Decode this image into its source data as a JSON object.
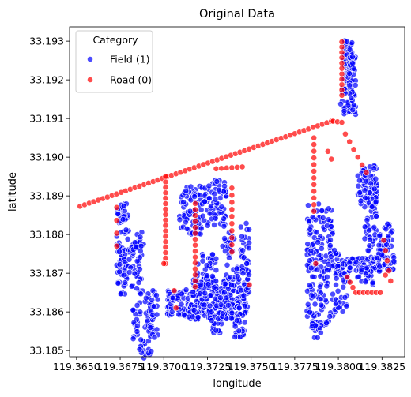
{
  "chart_data": {
    "type": "scatter",
    "title": "Original Data",
    "xlabel": "longitude",
    "ylabel": "latitude",
    "xlim": [
      119.3646,
      119.3838
    ],
    "ylim": [
      33.18484,
      33.19337
    ],
    "xticks": [
      {
        "value": 119.365,
        "label": "119.3650"
      },
      {
        "value": 119.3675,
        "label": "119.3675"
      },
      {
        "value": 119.37,
        "label": "119.3700"
      },
      {
        "value": 119.3725,
        "label": "119.3725"
      },
      {
        "value": 119.375,
        "label": "119.3750"
      },
      {
        "value": 119.3775,
        "label": "119.3775"
      },
      {
        "value": 119.38,
        "label": "119.3800"
      },
      {
        "value": 119.3825,
        "label": "119.3825"
      }
    ],
    "yticks": [
      {
        "value": 33.185,
        "label": "33.185"
      },
      {
        "value": 33.186,
        "label": "33.186"
      },
      {
        "value": 33.187,
        "label": "33.187"
      },
      {
        "value": 33.188,
        "label": "33.188"
      },
      {
        "value": 33.189,
        "label": "33.189"
      },
      {
        "value": 33.19,
        "label": "33.190"
      },
      {
        "value": 33.191,
        "label": "33.191"
      },
      {
        "value": 33.192,
        "label": "33.192"
      },
      {
        "value": 33.193,
        "label": "33.193"
      }
    ],
    "grid": false,
    "legend": {
      "title": "Category",
      "placement": "top-left",
      "entries": [
        {
          "label": "Field (1)",
          "color": "#0000ff"
        },
        {
          "label": "Road (0)",
          "color": "#ff0000"
        }
      ]
    },
    "series": [
      {
        "name": "Road (0)",
        "color": "#ff0000",
        "marker": "circle",
        "lines": [
          {
            "from": [
              119.3652,
              33.18873
            ],
            "to": [
              119.3796,
              33.19093
            ],
            "n": 56
          },
          {
            "from": [
              119.3797,
              33.19093
            ],
            "to": [
              119.3802,
              33.1909
            ],
            "n": 3
          },
          {
            "from": [
              119.3802,
              33.1916
            ],
            "to": [
              119.3802,
              33.19285
            ],
            "n": 10
          },
          {
            "from": [
              119.3701,
              33.1895
            ],
            "to": [
              119.3701,
              33.18725
            ],
            "n": 17
          },
          {
            "from": [
              119.3718,
              33.1888
            ],
            "to": [
              119.3718,
              33.18665
            ],
            "n": 15
          },
          {
            "from": [
              119.3739,
              33.1892
            ],
            "to": [
              119.3739,
              33.18755
            ],
            "n": 10
          },
          {
            "from": [
              119.373,
              33.1897
            ],
            "to": [
              119.3745,
              33.18975
            ],
            "n": 6
          },
          {
            "from": [
              119.3786,
              33.1905
            ],
            "to": [
              119.3786,
              33.1886
            ],
            "n": 12
          },
          {
            "from": [
              119.3804,
              33.1906
            ],
            "to": [
              119.3816,
              33.1896
            ],
            "n": 6
          },
          {
            "from": [
              119.3805,
              33.1869
            ],
            "to": [
              119.381,
              33.1865
            ],
            "n": 4
          },
          {
            "from": [
              119.3812,
              33.1865
            ],
            "to": [
              119.3824,
              33.1865
            ],
            "n": 6
          },
          {
            "from": [
              119.3826,
              33.18785
            ],
            "to": [
              119.383,
              33.1868
            ],
            "n": 5
          },
          {
            "from": [
              119.3673,
              33.1887
            ],
            "to": [
              119.3673,
              33.1877
            ],
            "n": 4
          }
        ],
        "points": [
          [
            119.3802,
            33.19298
          ],
          [
            119.3794,
            33.19015
          ],
          [
            119.3796,
            33.18995
          ],
          [
            119.3749,
            33.1867
          ],
          [
            119.3707,
            33.1861
          ],
          [
            119.3706,
            33.18655
          ],
          [
            119.3787,
            33.18725
          ],
          [
            119.3827,
            33.18695
          ],
          [
            119.37,
            33.18725
          ]
        ]
      },
      {
        "name": "Field (1)",
        "color": "#0000ff",
        "marker": "circle",
        "blocks": [
          {
            "x": [
              119.3673,
              119.368
            ],
            "y": [
              33.18645,
              33.1888
            ],
            "n": 90
          },
          {
            "x": [
              119.368,
              119.3688
            ],
            "y": [
              33.1865,
              33.1878
            ],
            "n": 40
          },
          {
            "x": [
              119.3683,
              119.369
            ],
            "y": [
              33.18765,
              33.1881
            ],
            "n": 10
          },
          {
            "x": [
              119.3686,
              119.3694
            ],
            "y": [
              33.1848,
              33.1865
            ],
            "n": 50
          },
          {
            "x": [
              119.3692,
              119.3697
            ],
            "y": [
              33.1853,
              33.1866
            ],
            "n": 25
          },
          {
            "x": [
              119.3682,
              119.3685
            ],
            "y": [
              33.1853,
              33.1862
            ],
            "n": 15
          },
          {
            "x": [
              119.3709,
              119.3722
            ],
            "y": [
              33.188,
              33.18925
            ],
            "n": 70
          },
          {
            "x": [
              119.3722,
              119.3736
            ],
            "y": [
              33.1882,
              33.18945
            ],
            "n": 70
          },
          {
            "x": [
              119.3702,
              119.3716
            ],
            "y": [
              33.1859,
              33.1866
            ],
            "n": 60
          },
          {
            "x": [
              119.3716,
              119.3749
            ],
            "y": [
              33.1859,
              33.1869
            ],
            "n": 180
          },
          {
            "x": [
              119.3714,
              119.3744
            ],
            "y": [
              33.1858,
              33.1862
            ],
            "n": 70
          },
          {
            "x": [
              119.3718,
              119.373
            ],
            "y": [
              33.1864,
              33.1876
            ],
            "n": 50
          },
          {
            "x": [
              119.3733,
              119.3749
            ],
            "y": [
              33.1865,
              33.1881
            ],
            "n": 60
          },
          {
            "x": [
              119.3726,
              119.3734
            ],
            "y": [
              33.18545,
              33.186
            ],
            "n": 25
          },
          {
            "x": [
              119.374,
              119.3747
            ],
            "y": [
              33.18535,
              33.1858
            ],
            "n": 20
          },
          {
            "x": [
              119.3744,
              119.3749
            ],
            "y": [
              33.1868,
              33.1884
            ],
            "n": 20
          },
          {
            "x": [
              119.3782,
              119.3797
            ],
            "y": [
              33.1856,
              33.1888
            ],
            "n": 160
          },
          {
            "x": [
              119.3795,
              119.38
            ],
            "y": [
              33.187,
              33.1876
            ],
            "n": 15
          },
          {
            "x": [
              119.3799,
              119.3811
            ],
            "y": [
              33.187,
              33.18735
            ],
            "n": 30
          },
          {
            "x": [
              119.3798,
              119.3806
            ],
            "y": [
              33.186,
              33.187
            ],
            "n": 30
          },
          {
            "x": [
              119.3803,
              119.3808
            ],
            "y": [
              33.1911,
              33.19305
            ],
            "n": 70
          },
          {
            "x": [
              119.3806,
              119.381
            ],
            "y": [
              33.1911,
              33.1926
            ],
            "n": 40
          },
          {
            "x": [
              119.3801,
              119.3806
            ],
            "y": [
              33.1911,
              33.1918
            ],
            "n": 12
          },
          {
            "x": [
              119.3814,
              119.3822
            ],
            "y": [
              33.1886,
              33.1899
            ],
            "n": 55
          },
          {
            "x": [
              119.3811,
              119.3816
            ],
            "y": [
              33.1887,
              33.1896
            ],
            "n": 20
          },
          {
            "x": [
              119.3815,
              119.3822
            ],
            "y": [
              33.1872,
              33.1886
            ],
            "n": 35
          },
          {
            "x": [
              119.3806,
              119.3824
            ],
            "y": [
              33.18705,
              33.1874
            ],
            "n": 40
          },
          {
            "x": [
              119.3811,
              119.382
            ],
            "y": [
              33.1867,
              33.18715
            ],
            "n": 25
          },
          {
            "x": [
              119.3823,
              119.3832
            ],
            "y": [
              33.1871,
              33.1883
            ],
            "n": 55
          },
          {
            "x": [
              119.3818,
              119.3826
            ],
            "y": [
              33.1873,
              33.1875
            ],
            "n": 10
          },
          {
            "x": [
              119.3784,
              119.3791
            ],
            "y": [
              33.1853,
              33.18575
            ],
            "n": 15
          }
        ]
      }
    ]
  }
}
